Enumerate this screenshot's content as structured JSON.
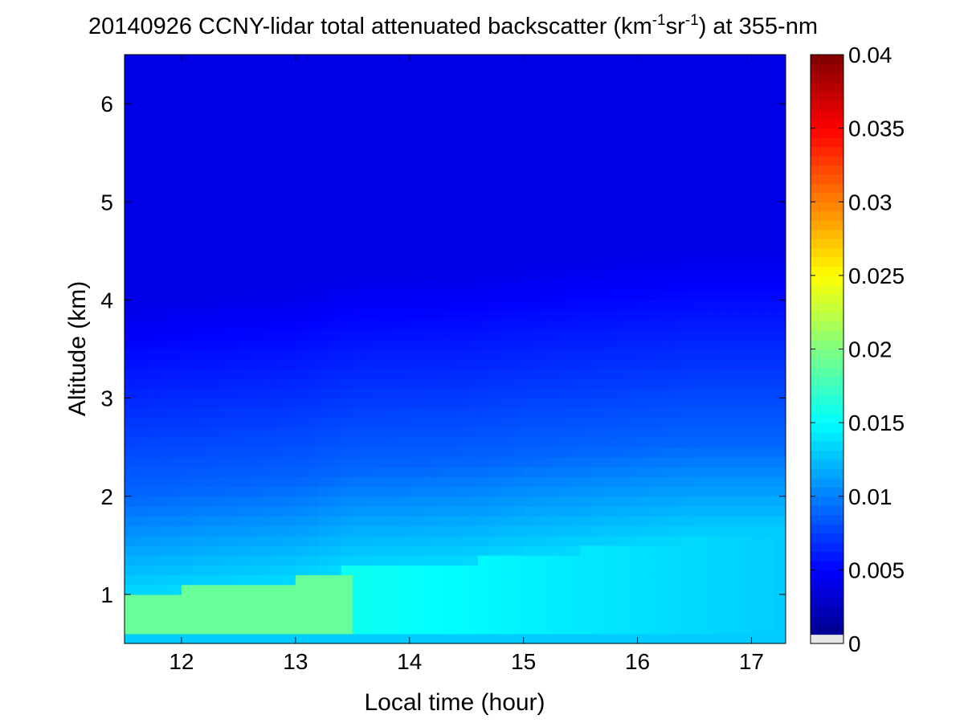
{
  "chart_data": {
    "type": "heatmap",
    "title": {
      "main": "20140926 CCNY-lidar total attenuated backscatter (km",
      "sup1": "-1",
      "mid": "sr",
      "sup2": "-1",
      "tail": ") at 355-nm"
    },
    "xlabel": "Local time (hour)",
    "ylabel": "Altitude (km)",
    "xlim": [
      11.5,
      17.3
    ],
    "ylim": [
      0.5,
      6.5
    ],
    "xticks": [
      12,
      13,
      14,
      15,
      16,
      17
    ],
    "yticks": [
      1,
      2,
      3,
      4,
      5,
      6
    ],
    "colorbar": {
      "range": [
        0,
        0.04
      ],
      "ticks": [
        "0",
        "0.005",
        "0.01",
        "0.015",
        "0.02",
        "0.025",
        "0.03",
        "0.035",
        "0.04"
      ],
      "colormap": "jet",
      "below_range_color": "#e6e6e6"
    },
    "features": {
      "boundary_layer_top_km": [
        [
          11.5,
          1.0
        ],
        [
          12.0,
          1.05
        ],
        [
          12.5,
          1.1
        ],
        [
          13.0,
          1.15
        ],
        [
          13.5,
          1.28
        ],
        [
          14.0,
          1.3
        ],
        [
          14.5,
          1.33
        ],
        [
          15.0,
          1.4
        ],
        [
          15.5,
          1.45
        ],
        [
          16.0,
          1.5
        ],
        [
          16.5,
          1.55
        ],
        [
          17.0,
          1.55
        ],
        [
          17.3,
          1.55
        ]
      ],
      "max_value_region": {
        "time_hours": [
          11.5,
          13.5
        ],
        "altitude_km": [
          0.6,
          1.2
        ],
        "approx_value": 0.019
      },
      "surface_layer_value": 0.013,
      "free_troposphere_value": 0.004,
      "aerosol_layer_1_5_to_2_5_km_value": 0.009
    }
  }
}
